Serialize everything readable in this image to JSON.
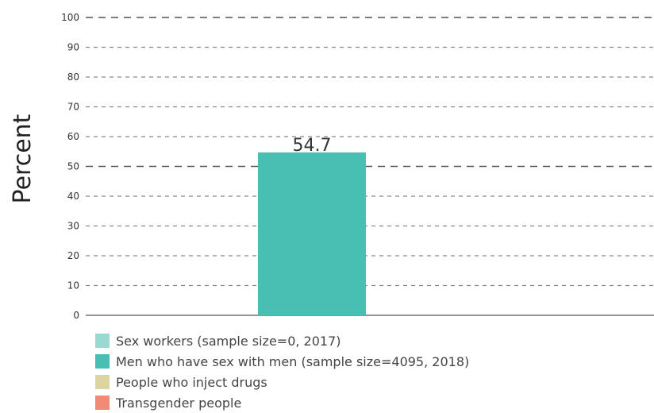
{
  "chart_data": {
    "type": "bar",
    "ylabel": "Percent",
    "ylim": [
      0,
      100
    ],
    "yticks": [
      0,
      10,
      20,
      30,
      40,
      50,
      60,
      70,
      80,
      90,
      100
    ],
    "grid": true,
    "legend_placement": "bottom-left",
    "series": [
      {
        "name": "Sex workers (sample size=0, 2017)",
        "value": null,
        "color": "#9ad9d0"
      },
      {
        "name": "Men who have sex with men (sample size=4095, 2018)",
        "value": 54.7,
        "value_label": "54.7",
        "color": "#48bfb3"
      },
      {
        "name": "People who inject drugs",
        "value": null,
        "color": "#ddd5a0"
      },
      {
        "name": "Transgender people",
        "value": null,
        "color": "#f28b76"
      }
    ]
  }
}
